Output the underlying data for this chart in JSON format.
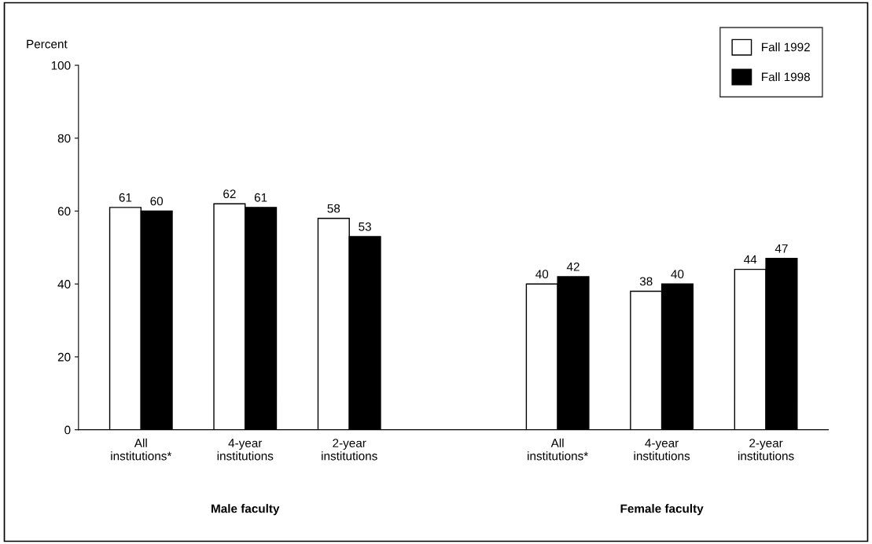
{
  "chart_data": {
    "type": "bar",
    "ylabel": "Percent",
    "categories": [
      "All\ninstitutions*",
      "4-year\ninstitutions",
      "2-year\ninstitutions",
      null,
      "All\ninstitutions*",
      "4-year\ninstitutions",
      "2-year\ninstitutions"
    ],
    "series": [
      {
        "name": "Fall 1992",
        "color": "#ffffff",
        "values": [
          61,
          62,
          58,
          null,
          40,
          38,
          44
        ]
      },
      {
        "name": "Fall 1998",
        "color": "#000000",
        "values": [
          60,
          61,
          53,
          null,
          42,
          40,
          47
        ]
      }
    ],
    "ylim": [
      0,
      100
    ],
    "yticks": [
      0,
      20,
      40,
      60,
      80,
      100
    ],
    "grid": false,
    "legend": "top right",
    "data_labels": true,
    "annotations": [
      "Male faculty",
      "Female faculty"
    ]
  }
}
